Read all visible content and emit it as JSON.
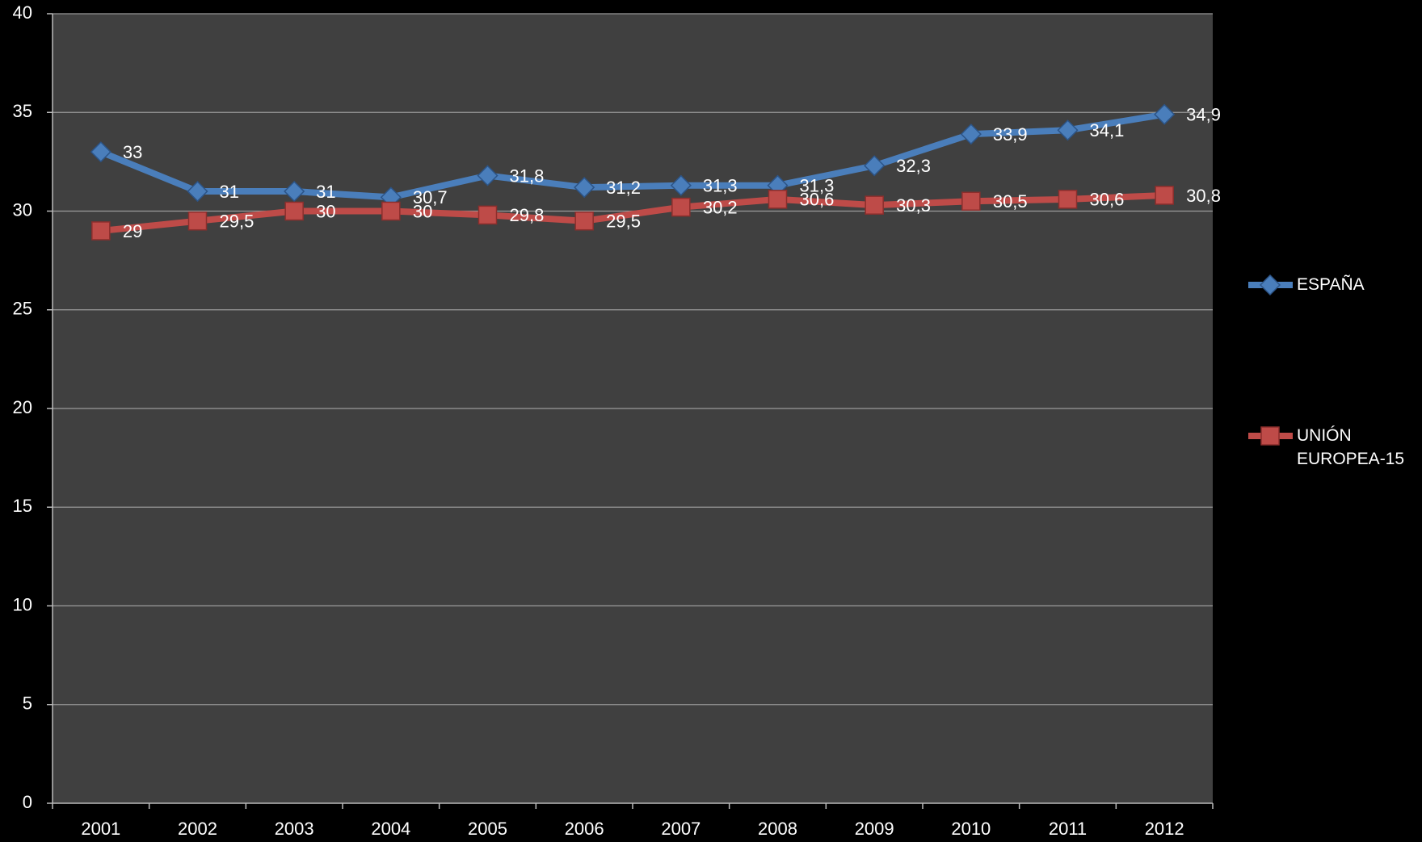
{
  "chart_data": {
    "type": "line",
    "categories": [
      "2001",
      "2002",
      "2003",
      "2004",
      "2005",
      "2006",
      "2007",
      "2008",
      "2009",
      "2010",
      "2011",
      "2012"
    ],
    "series": [
      {
        "name": "ESPAÑA",
        "color": "#4a7ebb",
        "marker": "diamond",
        "values": [
          33,
          31,
          31,
          30.7,
          31.8,
          31.2,
          31.3,
          31.3,
          32.3,
          33.9,
          34.1,
          34.9
        ],
        "value_labels": [
          "33",
          "31",
          "31",
          "30,7",
          "31,8",
          "31,2",
          "31,3",
          "31,3",
          "32,3",
          "33,9",
          "34,1",
          "34,9"
        ]
      },
      {
        "name": "UNIÓN EUROPEA-15",
        "color": "#be4b48",
        "marker": "square",
        "values": [
          29,
          29.5,
          30,
          30,
          29.8,
          29.5,
          30.2,
          30.6,
          30.3,
          30.5,
          30.6,
          30.8
        ],
        "value_labels": [
          "29",
          "29,5",
          "30",
          "30",
          "29,8",
          "29,5",
          "30,2",
          "30,6",
          "30,3",
          "30,5",
          "30,6",
          "30,8"
        ]
      }
    ],
    "ylim": [
      0,
      40
    ],
    "yticks": [
      0,
      5,
      10,
      15,
      20,
      25,
      30,
      35,
      40
    ],
    "grid": true,
    "legend": "right"
  }
}
